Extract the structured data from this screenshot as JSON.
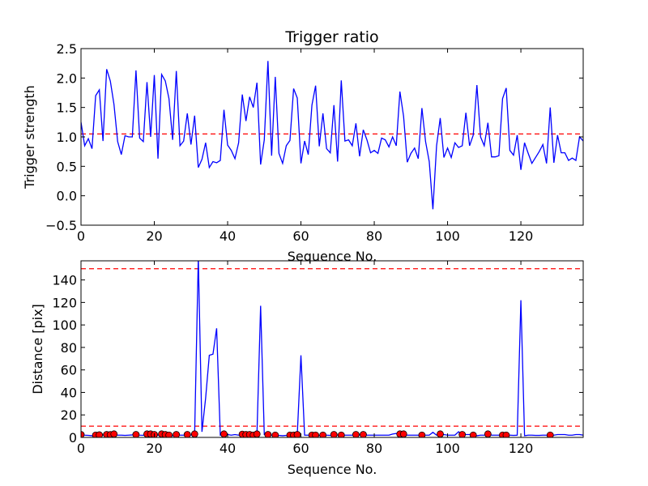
{
  "chart_data": [
    {
      "type": "line",
      "title": "Trigger ratio",
      "xlabel": "Sequence No.",
      "ylabel": "Trigger strength",
      "xlim": [
        0,
        137
      ],
      "ylim": [
        -0.5,
        2.5
      ],
      "xticks": [
        "0",
        "20",
        "40",
        "60",
        "80",
        "100",
        "120"
      ],
      "yticks": [
        "−0.5",
        "0.0",
        "0.5",
        "1.0",
        "1.5",
        "2.0",
        "2.5"
      ],
      "grid": false,
      "series": [
        {
          "color": "#0000ff",
          "x": [
            0,
            1,
            2,
            3,
            4,
            5,
            6,
            7,
            8,
            9,
            10,
            11,
            12,
            13,
            14,
            15,
            16,
            17,
            18,
            19,
            20,
            21,
            22,
            23,
            24,
            25,
            26,
            27,
            28,
            29,
            30,
            31,
            32,
            33,
            34,
            35,
            36,
            37,
            38,
            39,
            40,
            41,
            42,
            43,
            44,
            45,
            46,
            47,
            48,
            49,
            50,
            51,
            52,
            53,
            54,
            55,
            56,
            57,
            58,
            59,
            60,
            61,
            62,
            63,
            64,
            65,
            66,
            67,
            68,
            69,
            70,
            71,
            72,
            73,
            74,
            75,
            76,
            77,
            78,
            79,
            80,
            81,
            82,
            83,
            84,
            85,
            86,
            87,
            88,
            89,
            90,
            91,
            92,
            93,
            94,
            95,
            96,
            97,
            98,
            99,
            100,
            101,
            102,
            103,
            104,
            105,
            106,
            107,
            108,
            109,
            110,
            111,
            112,
            113,
            114,
            115,
            116,
            117,
            118,
            119,
            120,
            121,
            122,
            123,
            124,
            125,
            126,
            127,
            128,
            129,
            130,
            131,
            132,
            133,
            134,
            135,
            136,
            137
          ],
          "y": [
            1.25,
            0.85,
            0.97,
            0.8,
            1.7,
            1.8,
            0.93,
            2.15,
            1.95,
            1.55,
            0.92,
            0.7,
            1.02,
            1.0,
            1.0,
            2.13,
            0.98,
            0.92,
            1.93,
            1.0,
            2.05,
            0.63,
            2.06,
            1.95,
            1.65,
            0.95,
            2.12,
            0.85,
            0.93,
            1.4,
            0.87,
            1.36,
            0.48,
            0.62,
            0.9,
            0.48,
            0.58,
            0.56,
            0.6,
            1.46,
            0.86,
            0.77,
            0.63,
            0.9,
            1.72,
            1.27,
            1.68,
            1.5,
            1.92,
            0.53,
            0.95,
            2.29,
            0.68,
            2.02,
            0.72,
            0.55,
            0.85,
            0.94,
            1.82,
            1.66,
            0.55,
            0.93,
            0.7,
            1.54,
            1.87,
            0.84,
            1.4,
            0.8,
            0.73,
            1.54,
            0.58,
            1.96,
            0.93,
            0.95,
            0.85,
            1.23,
            0.67,
            1.12,
            0.95,
            0.73,
            0.77,
            0.72,
            0.98,
            0.95,
            0.83,
            1.0,
            0.85,
            1.77,
            1.35,
            0.57,
            0.72,
            0.81,
            0.63,
            1.49,
            0.92,
            0.58,
            -0.23,
            0.85,
            1.32,
            0.65,
            0.81,
            0.65,
            0.9,
            0.82,
            0.85,
            1.41,
            0.85,
            1.03,
            1.88,
            1.0,
            0.85,
            1.24,
            0.66,
            0.66,
            0.68,
            1.65,
            1.83,
            0.77,
            0.69,
            1.03,
            0.44,
            0.9,
            0.72,
            0.55,
            0.65,
            0.75,
            0.87,
            0.55,
            1.5,
            0.56,
            1.03,
            0.73,
            0.73,
            0.6,
            0.64,
            0.6,
            1.0,
            0.93
          ]
        }
      ],
      "reference_lines": [
        {
          "axis": "y",
          "value": 1.05,
          "color": "#ff0000",
          "style": "dashed"
        }
      ]
    },
    {
      "type": "line",
      "title": "",
      "xlabel": "Sequence No.",
      "ylabel": "Distance [pix]",
      "xlim": [
        0,
        137
      ],
      "ylim": [
        0,
        157
      ],
      "xticks": [
        "0",
        "20",
        "40",
        "60",
        "80",
        "100",
        "120"
      ],
      "yticks": [
        "0",
        "20",
        "40",
        "60",
        "80",
        "100",
        "120",
        "140"
      ],
      "grid": false,
      "series": [
        {
          "color": "#0000ff",
          "x": [
            0,
            1,
            2,
            3,
            4,
            5,
            6,
            7,
            8,
            9,
            10,
            11,
            12,
            13,
            14,
            15,
            16,
            17,
            18,
            19,
            20,
            21,
            22,
            23,
            24,
            25,
            26,
            27,
            28,
            29,
            30,
            31,
            32,
            33,
            34,
            35,
            36,
            37,
            38,
            39,
            40,
            41,
            42,
            43,
            44,
            45,
            46,
            47,
            48,
            49,
            50,
            51,
            52,
            53,
            54,
            55,
            56,
            57,
            58,
            59,
            60,
            61,
            62,
            63,
            64,
            65,
            66,
            67,
            68,
            69,
            70,
            71,
            72,
            73,
            74,
            75,
            76,
            77,
            78,
            79,
            80,
            81,
            82,
            83,
            84,
            85,
            86,
            87,
            88,
            89,
            90,
            91,
            92,
            93,
            94,
            95,
            96,
            97,
            98,
            99,
            100,
            101,
            102,
            103,
            104,
            105,
            106,
            107,
            108,
            109,
            110,
            111,
            112,
            113,
            114,
            115,
            116,
            117,
            118,
            119,
            120,
            121,
            122,
            123,
            124,
            125,
            126,
            127,
            128,
            129,
            130,
            131,
            132,
            133,
            134,
            135,
            136,
            137
          ],
          "y": [
            2.5,
            2.0,
            1.8,
            1.5,
            2.0,
            2.2,
            2.0,
            2.5,
            2.4,
            3.0,
            2.0,
            2.0,
            1.8,
            2.0,
            2.2,
            2.5,
            2.0,
            1.9,
            3.0,
            3.0,
            2.5,
            1.8,
            3.0,
            2.5,
            2.0,
            1.5,
            2.5,
            2.0,
            2.0,
            2.5,
            2.0,
            3.0,
            160,
            5.0,
            35,
            73,
            74,
            97,
            2.0,
            3.0,
            2.5,
            2.0,
            2.5,
            2.0,
            2.8,
            2.5,
            2.5,
            2.0,
            3.0,
            117,
            2.5,
            2.0,
            2.0,
            2.0,
            1.8,
            1.5,
            1.8,
            2.0,
            2.0,
            2.5,
            73,
            2.0,
            2.0,
            2.0,
            2.0,
            1.8,
            2.0,
            2.0,
            1.8,
            2.5,
            2.0,
            2.0,
            2.0,
            2.0,
            2.0,
            2.5,
            2.0,
            2.5,
            2.0,
            2.0,
            2.0,
            2.0,
            2.0,
            2.0,
            2.0,
            3.0,
            3.5,
            2.5,
            2.0,
            2.0,
            2.0,
            2.0,
            2.0,
            2.0,
            2.0,
            2.0,
            4.5,
            2.0,
            2.0,
            2.5,
            2.0,
            2.0,
            2.0,
            5.0,
            2.0,
            2.5,
            2.5,
            2.0,
            1.5,
            2.0,
            2.0,
            3.0,
            2.0,
            2.0,
            2.0,
            2.0,
            2.0,
            2.0,
            1.8,
            2.0,
            122,
            1.5,
            2.0,
            2.0,
            1.8,
            1.8,
            2.0,
            2.0,
            2.0,
            2.0,
            2.5,
            2.5,
            2.5,
            2.0,
            2.0,
            2.5,
            2.5,
            2.0
          ]
        },
        {
          "color": "#ff0000",
          "style": "markers",
          "x": [
            0,
            4,
            5,
            7,
            8,
            9,
            15,
            18,
            19,
            20,
            22,
            23,
            24,
            26,
            29,
            31,
            39,
            44,
            45,
            46,
            47,
            48,
            51,
            53,
            57,
            58,
            59,
            63,
            64,
            66,
            69,
            71,
            75,
            77,
            87,
            88,
            93,
            98,
            104,
            107,
            111,
            115,
            116,
            128
          ],
          "y": [
            2.5,
            2.0,
            2.2,
            2.5,
            2.4,
            3.0,
            2.5,
            3.0,
            3.0,
            2.5,
            3.0,
            2.5,
            2.0,
            2.5,
            2.5,
            3.0,
            3.0,
            2.8,
            2.5,
            2.5,
            2.0,
            3.0,
            2.5,
            2.0,
            2.0,
            2.0,
            2.5,
            2.0,
            2.0,
            2.0,
            2.5,
            2.0,
            2.5,
            2.5,
            3.0,
            3.0,
            2.0,
            3.0,
            2.5,
            2.0,
            3.0,
            2.0,
            2.0,
            2.0
          ]
        }
      ],
      "reference_lines": [
        {
          "axis": "y",
          "value": 10,
          "color": "#ff0000",
          "style": "dashed"
        },
        {
          "axis": "y",
          "value": 150,
          "color": "#ff0000",
          "style": "dashed"
        }
      ]
    }
  ]
}
